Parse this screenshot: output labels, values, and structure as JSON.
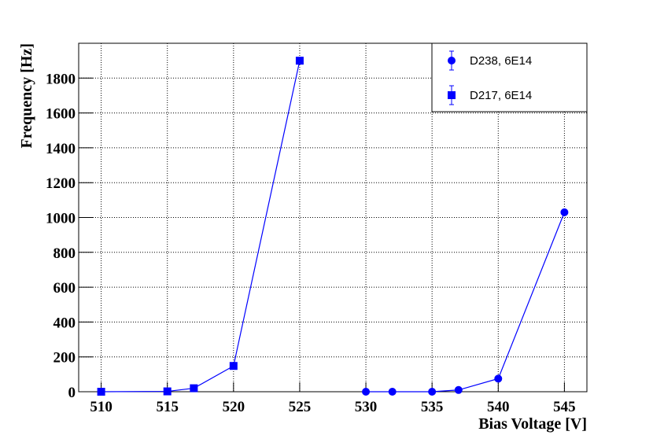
{
  "chart_data": {
    "type": "line",
    "xlabel": "Bias Voltage [V]",
    "ylabel": "Frequency [Hz]",
    "xlim": [
      508.3,
      546.7
    ],
    "ylim": [
      0,
      2000
    ],
    "xticks": [
      510,
      515,
      520,
      525,
      530,
      535,
      540,
      545
    ],
    "yticks": [
      0,
      200,
      400,
      600,
      800,
      1000,
      1200,
      1400,
      1600,
      1800
    ],
    "grid": true,
    "legend": "top-right",
    "series": [
      {
        "name": "D238, 6E14",
        "color": "#0000ff",
        "marker": "circle",
        "x": [
          530,
          532,
          535,
          537,
          540,
          545
        ],
        "values": [
          0,
          0,
          0,
          10,
          75,
          1030
        ]
      },
      {
        "name": "D217, 6E14",
        "color": "#0000ff",
        "marker": "square",
        "x": [
          510,
          515,
          517,
          520,
          525
        ],
        "values": [
          0,
          2,
          20,
          148,
          1900
        ]
      }
    ]
  }
}
